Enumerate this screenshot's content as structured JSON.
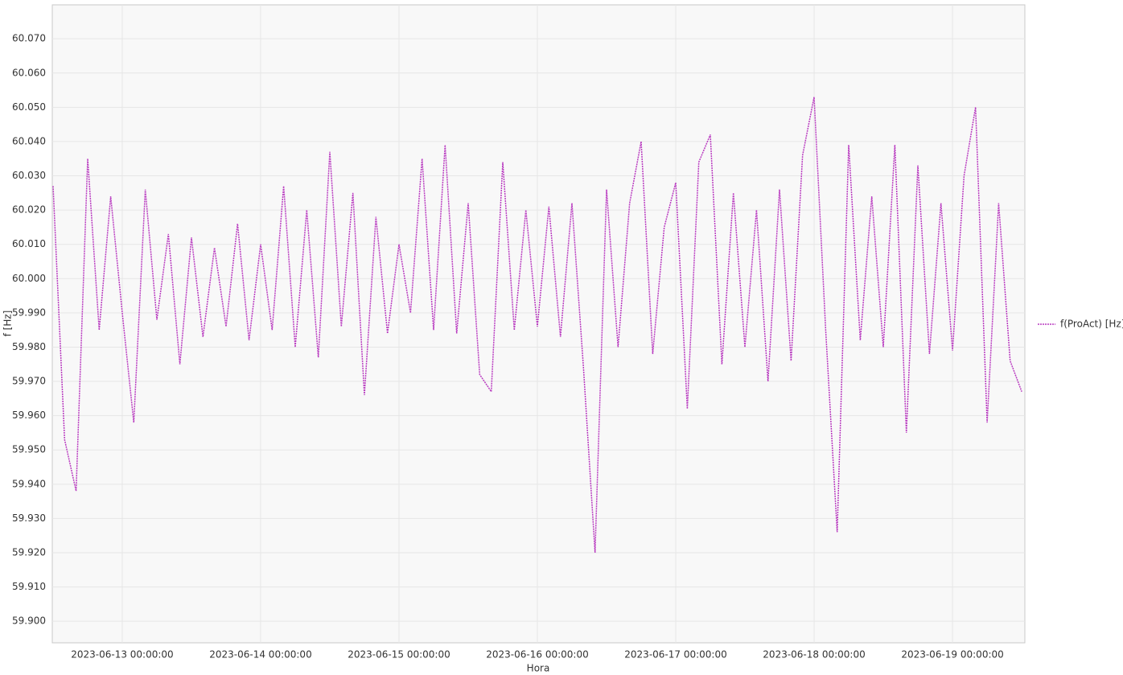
{
  "chart_data": {
    "type": "line",
    "xlabel": "Hora",
    "ylabel": "f [Hz]",
    "x": [
      "2023-06-12 12:00:00",
      "2023-06-12 14:00:00",
      "2023-06-12 16:00:00",
      "2023-06-12 18:00:00",
      "2023-06-12 20:00:00",
      "2023-06-12 22:00:00",
      "2023-06-13 00:00:00",
      "2023-06-13 02:00:00",
      "2023-06-13 04:00:00",
      "2023-06-13 06:00:00",
      "2023-06-13 08:00:00",
      "2023-06-13 10:00:00",
      "2023-06-13 12:00:00",
      "2023-06-13 14:00:00",
      "2023-06-13 16:00:00",
      "2023-06-13 18:00:00",
      "2023-06-13 20:00:00",
      "2023-06-13 22:00:00",
      "2023-06-14 00:00:00",
      "2023-06-14 02:00:00",
      "2023-06-14 04:00:00",
      "2023-06-14 06:00:00",
      "2023-06-14 08:00:00",
      "2023-06-14 10:00:00",
      "2023-06-14 12:00:00",
      "2023-06-14 14:00:00",
      "2023-06-14 16:00:00",
      "2023-06-14 18:00:00",
      "2023-06-14 20:00:00",
      "2023-06-14 22:00:00",
      "2023-06-15 00:00:00",
      "2023-06-15 02:00:00",
      "2023-06-15 04:00:00",
      "2023-06-15 06:00:00",
      "2023-06-15 08:00:00",
      "2023-06-15 10:00:00",
      "2023-06-15 12:00:00",
      "2023-06-15 14:00:00",
      "2023-06-15 16:00:00",
      "2023-06-15 18:00:00",
      "2023-06-15 20:00:00",
      "2023-06-15 22:00:00",
      "2023-06-16 00:00:00",
      "2023-06-16 02:00:00",
      "2023-06-16 04:00:00",
      "2023-06-16 06:00:00",
      "2023-06-16 08:00:00",
      "2023-06-16 10:00:00",
      "2023-06-16 12:00:00",
      "2023-06-16 14:00:00",
      "2023-06-16 16:00:00",
      "2023-06-16 18:00:00",
      "2023-06-16 20:00:00",
      "2023-06-16 22:00:00",
      "2023-06-17 00:00:00",
      "2023-06-17 02:00:00",
      "2023-06-17 04:00:00",
      "2023-06-17 06:00:00",
      "2023-06-17 08:00:00",
      "2023-06-17 10:00:00",
      "2023-06-17 12:00:00",
      "2023-06-17 14:00:00",
      "2023-06-17 16:00:00",
      "2023-06-17 18:00:00",
      "2023-06-17 20:00:00",
      "2023-06-17 22:00:00",
      "2023-06-18 00:00:00",
      "2023-06-18 02:00:00",
      "2023-06-18 04:00:00",
      "2023-06-18 06:00:00",
      "2023-06-18 08:00:00",
      "2023-06-18 10:00:00",
      "2023-06-18 12:00:00",
      "2023-06-18 14:00:00",
      "2023-06-18 16:00:00",
      "2023-06-18 18:00:00",
      "2023-06-18 20:00:00",
      "2023-06-18 22:00:00",
      "2023-06-19 00:00:00",
      "2023-06-19 02:00:00",
      "2023-06-19 04:00:00",
      "2023-06-19 06:00:00",
      "2023-06-19 08:00:00",
      "2023-06-19 10:00:00",
      "2023-06-19 12:00:00"
    ],
    "series": [
      {
        "name": "f(ProAct) [Hz]",
        "color": "#b93cc0",
        "values": [
          60.027,
          59.953,
          59.938,
          60.035,
          59.985,
          60.024,
          59.99,
          59.958,
          60.026,
          59.988,
          60.013,
          59.975,
          60.012,
          59.983,
          60.009,
          59.986,
          60.016,
          59.982,
          60.01,
          59.985,
          60.027,
          59.98,
          60.02,
          59.977,
          60.037,
          59.986,
          60.025,
          59.966,
          60.018,
          59.984,
          60.01,
          59.99,
          60.035,
          59.985,
          60.039,
          59.984,
          60.022,
          59.972,
          59.967,
          60.034,
          59.985,
          60.02,
          59.986,
          60.021,
          59.983,
          60.022,
          59.974,
          59.92,
          60.026,
          59.98,
          60.022,
          60.04,
          59.978,
          60.015,
          60.028,
          59.962,
          60.034,
          60.042,
          59.975,
          60.025,
          59.98,
          60.02,
          59.97,
          60.026,
          59.976,
          60.036,
          60.053,
          59.985,
          59.926,
          60.039,
          59.982,
          60.024,
          59.98,
          60.039,
          59.955,
          60.033,
          59.978,
          60.022,
          59.979,
          60.03,
          60.05,
          59.958,
          60.022,
          59.976,
          59.967
        ]
      }
    ],
    "xlim": [
      "2023-06-12 11:52:00",
      "2023-06-19 12:33:00"
    ],
    "xticks": [
      "2023-06-13 00:00:00",
      "2023-06-14 00:00:00",
      "2023-06-15 00:00:00",
      "2023-06-16 00:00:00",
      "2023-06-17 00:00:00",
      "2023-06-18 00:00:00",
      "2023-06-19 00:00:00"
    ],
    "ylim": [
      59.8937,
      60.0799
    ],
    "yticks": [
      {
        "value": 59.9,
        "label": "59.900"
      },
      {
        "value": 59.91,
        "label": "59.910"
      },
      {
        "value": 59.92,
        "label": "59.920"
      },
      {
        "value": 59.93,
        "label": "59.930"
      },
      {
        "value": 59.94,
        "label": "59.940"
      },
      {
        "value": 59.95,
        "label": "59.950"
      },
      {
        "value": 59.96,
        "label": "59.960"
      },
      {
        "value": 59.97,
        "label": "59.970"
      },
      {
        "value": 59.98,
        "label": "59.980"
      },
      {
        "value": 59.99,
        "label": "59.990"
      },
      {
        "value": 60.0,
        "label": "60.000"
      },
      {
        "value": 60.01,
        "label": "60.010"
      },
      {
        "value": 60.02,
        "label": "60.020"
      },
      {
        "value": 60.03,
        "label": "60.030"
      },
      {
        "value": 60.04,
        "label": "60.040"
      },
      {
        "value": 60.05,
        "label": "60.050"
      },
      {
        "value": 60.06,
        "label": "60.060"
      },
      {
        "value": 60.07,
        "label": "60.070"
      }
    ],
    "grid": true,
    "line_style": "dotted",
    "legend": "right"
  }
}
